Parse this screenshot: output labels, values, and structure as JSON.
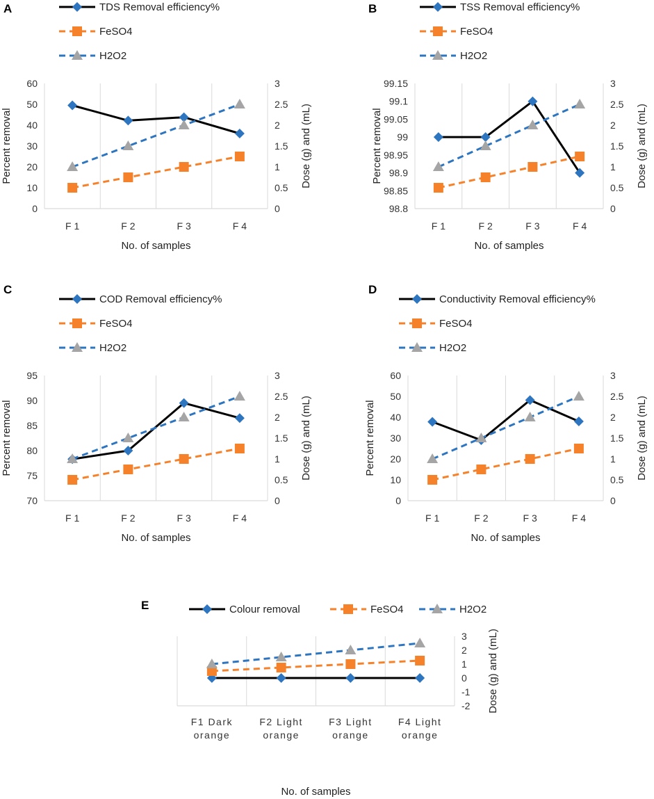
{
  "chart_data": [
    {
      "panel": "A",
      "type": "line",
      "categories": [
        "F 1",
        "F 2",
        "F 3",
        "F 4"
      ],
      "xlabel": "No. of samples",
      "ylabel": "Percent removal",
      "y2label": "Dose (g) and  (mL)",
      "ylim": [
        0,
        60
      ],
      "yticks": [
        "0",
        "10",
        "20",
        "30",
        "40",
        "50",
        "60"
      ],
      "y2lim": [
        0,
        3
      ],
      "y2ticks": [
        "0",
        "0.5",
        "1",
        "1.5",
        "2",
        "2.5",
        "3"
      ],
      "series": [
        {
          "name": "TDS Removal efficiency%",
          "axis": "left",
          "values": [
            49.5,
            42.2,
            43.8,
            36
          ],
          "color": "#000000",
          "dash": false,
          "marker": "diamond"
        },
        {
          "name": "FeSO4",
          "axis": "right",
          "values": [
            0.5,
            0.75,
            1,
            1.25
          ],
          "color": "#F5822A",
          "dash": true,
          "marker": "square"
        },
        {
          "name": "H2O2",
          "axis": "right",
          "values": [
            1,
            1.5,
            2,
            2.5
          ],
          "color": "#2E75C0",
          "dash": true,
          "marker": "triangle"
        }
      ]
    },
    {
      "panel": "B",
      "type": "line",
      "categories": [
        "F 1",
        "F 2",
        "F 3",
        "F 4"
      ],
      "xlabel": "No. of samples",
      "ylabel": "Percent removal",
      "y2label": "Dose (g) and  (mL)",
      "ylim": [
        98.8,
        99.15
      ],
      "yticks": [
        "98.8",
        "98.85",
        "98.9",
        "98.95",
        "99",
        "99.05",
        "99.1",
        "99.15"
      ],
      "y2lim": [
        0,
        3
      ],
      "y2ticks": [
        "0",
        "0.5",
        "1",
        "1.5",
        "2",
        "2.5",
        "3"
      ],
      "series": [
        {
          "name": "TSS Removal efficiency%",
          "axis": "left",
          "values": [
            99,
            99,
            99.1,
            98.9
          ],
          "color": "#000000",
          "dash": false,
          "marker": "diamond"
        },
        {
          "name": "FeSO4",
          "axis": "right",
          "values": [
            0.5,
            0.75,
            1,
            1.25
          ],
          "color": "#F5822A",
          "dash": true,
          "marker": "square"
        },
        {
          "name": "H2O2",
          "axis": "right",
          "values": [
            1,
            1.5,
            2,
            2.5
          ],
          "color": "#2E75C0",
          "dash": true,
          "marker": "triangle"
        }
      ]
    },
    {
      "panel": "C",
      "type": "line",
      "categories": [
        "F 1",
        "F 2",
        "F 3",
        "F 4"
      ],
      "xlabel": "No. of samples",
      "ylabel": "Percent removal",
      "y2label": "Dose (g) and  (mL)",
      "ylim": [
        70,
        95
      ],
      "yticks": [
        "70",
        "75",
        "80",
        "85",
        "90",
        "95"
      ],
      "y2lim": [
        0,
        3
      ],
      "y2ticks": [
        "0",
        "0.5",
        "1",
        "1.5",
        "2",
        "2.5",
        "3"
      ],
      "series": [
        {
          "name": "COD Removal efficiency%",
          "axis": "left",
          "values": [
            78.3,
            80,
            89.5,
            86.5
          ],
          "color": "#000000",
          "dash": false,
          "marker": "diamond"
        },
        {
          "name": "FeSO4",
          "axis": "right",
          "values": [
            0.5,
            0.75,
            1,
            1.25
          ],
          "color": "#F5822A",
          "dash": true,
          "marker": "square"
        },
        {
          "name": "H2O2",
          "axis": "right",
          "values": [
            1,
            1.5,
            2,
            2.5
          ],
          "color": "#2E75C0",
          "dash": true,
          "marker": "triangle"
        }
      ]
    },
    {
      "panel": "D",
      "type": "line",
      "categories": [
        "F 1",
        "F 2",
        "F 3",
        "F 4"
      ],
      "xlabel": "No. of samples",
      "ylabel": "Percent removal",
      "y2label": "Dose (g) and  (mL)",
      "ylim": [
        0,
        60
      ],
      "yticks": [
        "0",
        "10",
        "20",
        "30",
        "40",
        "50",
        "60"
      ],
      "y2lim": [
        0,
        3
      ],
      "y2ticks": [
        "0",
        "0.5",
        "1",
        "1.5",
        "2",
        "2.5",
        "3"
      ],
      "series": [
        {
          "name": "Conductivity Removal efficiency%",
          "axis": "left",
          "values": [
            37.8,
            29,
            48.2,
            38
          ],
          "color": "#000000",
          "dash": false,
          "marker": "diamond"
        },
        {
          "name": "FeSO4",
          "axis": "right",
          "values": [
            0.5,
            0.75,
            1,
            1.25
          ],
          "color": "#F5822A",
          "dash": true,
          "marker": "square"
        },
        {
          "name": "H2O2",
          "axis": "right",
          "values": [
            1,
            1.5,
            2,
            2.5
          ],
          "color": "#2E75C0",
          "dash": true,
          "marker": "triangle"
        }
      ]
    },
    {
      "panel": "E",
      "type": "line",
      "categories": [
        [
          "F1",
          "Dark",
          "orange"
        ],
        [
          "F2",
          "Light",
          "orange"
        ],
        [
          "F3",
          "Light",
          "orange"
        ],
        [
          "F4",
          "Light",
          "orange"
        ]
      ],
      "xlabel": "No. of samples",
      "ylabel": "",
      "y2label": "Dose (g) and (mL)",
      "y2lim": [
        -2,
        3
      ],
      "y2ticks": [
        "-2",
        "-1",
        "0",
        "1",
        "2",
        "3"
      ],
      "series": [
        {
          "name": "Colour removal",
          "axis": "right",
          "values": [
            0,
            0,
            0,
            0
          ],
          "color": "#000000",
          "dash": false,
          "marker": "diamond"
        },
        {
          "name": "FeSO4",
          "axis": "right",
          "values": [
            0.5,
            0.75,
            1,
            1.25
          ],
          "color": "#F5822A",
          "dash": true,
          "marker": "square"
        },
        {
          "name": "H2O2",
          "axis": "right",
          "values": [
            1,
            1.5,
            2,
            2.5
          ],
          "color": "#2E75C0",
          "dash": true,
          "marker": "triangle"
        }
      ]
    }
  ]
}
